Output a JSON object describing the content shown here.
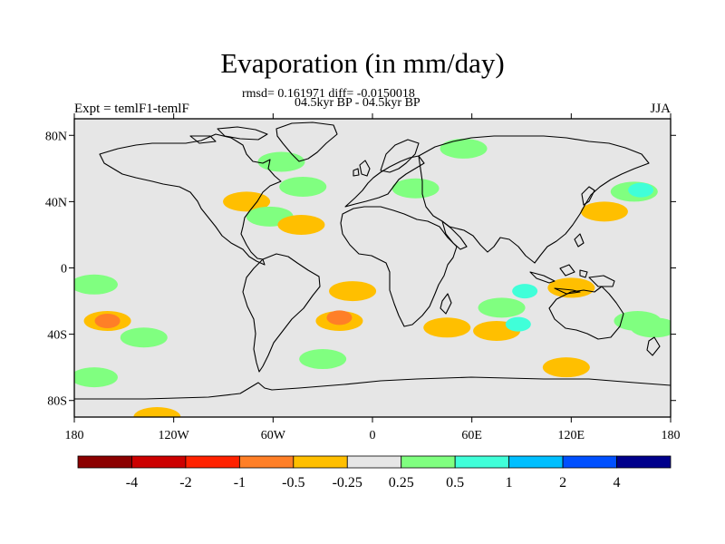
{
  "title": "Evaporation (in mm/day)",
  "subtitle_stats": "rmsd= 0.161971 diff= -0.0150018",
  "subtitle_period": "04.5kyr BP - 04.5kyr BP",
  "left_label": "Expt = temlF1-temlF",
  "right_label": "JJA",
  "map": {
    "projection": "cylindrical-equidistant",
    "lon_range": [
      -180,
      180
    ],
    "lat_range": [
      -90,
      90
    ],
    "background_color": "#e6e6e6",
    "lat_ticks": [
      {
        "value": 80,
        "label": "80N"
      },
      {
        "value": 40,
        "label": "40N"
      },
      {
        "value": 0,
        "label": "0"
      },
      {
        "value": -40,
        "label": "40S"
      },
      {
        "value": -80,
        "label": "80S"
      }
    ],
    "lon_ticks": [
      {
        "value": -180,
        "label": "180"
      },
      {
        "value": -120,
        "label": "120W"
      },
      {
        "value": -60,
        "label": "60W"
      },
      {
        "value": 0,
        "label": "0"
      },
      {
        "value": 60,
        "label": "60E"
      },
      {
        "value": 120,
        "label": "120E"
      },
      {
        "value": 180,
        "label": "180"
      }
    ]
  },
  "colorbar": {
    "colors": [
      "#8b0000",
      "#cc0000",
      "#ff2200",
      "#ff7f27",
      "#ffbf00",
      "#e6e6e6",
      "#80ff80",
      "#40ffd9",
      "#00bfff",
      "#0050ff",
      "#00008b"
    ],
    "labels": [
      "-4",
      "-2",
      "-1",
      "-0.5",
      "-0.25",
      "0.25",
      "0.5",
      "1",
      "2",
      "4"
    ]
  },
  "chart_data": {
    "type": "heatmap",
    "title": "Evaporation (in mm/day)",
    "subtitle": "rmsd= 0.161971 diff= -0.0150018",
    "variable_units": "mm/day",
    "season": "JJA",
    "x_range": [
      -180,
      180
    ],
    "y_range": [
      -90,
      90
    ],
    "contour_levels": [
      -4,
      -2,
      -1,
      -0.5,
      -0.25,
      0.25,
      0.5,
      1,
      2,
      4
    ],
    "anomalies": [
      {
        "lon": -160,
        "lat": -32,
        "level": -1,
        "color": "#ff7f27"
      },
      {
        "lon": -160,
        "lat": -32,
        "level": -0.5,
        "color": "#ffbf00"
      },
      {
        "lon": -168,
        "lat": -10,
        "level": 0.5,
        "color": "#80ff80"
      },
      {
        "lon": -138,
        "lat": -42,
        "level": 0.5,
        "color": "#80ff80"
      },
      {
        "lon": -168,
        "lat": -66,
        "level": 0.5,
        "color": "#80ff80"
      },
      {
        "lon": -130,
        "lat": -90,
        "level": -0.5,
        "color": "#ffbf00"
      },
      {
        "lon": -76,
        "lat": 40,
        "level": -0.5,
        "color": "#ffbf00"
      },
      {
        "lon": -62,
        "lat": 31,
        "level": 0.5,
        "color": "#80ff80"
      },
      {
        "lon": -55,
        "lat": 64,
        "level": 0.5,
        "color": "#80ff80"
      },
      {
        "lon": -42,
        "lat": 49,
        "level": 0.5,
        "color": "#80ff80"
      },
      {
        "lon": -43,
        "lat": 26,
        "level": -0.5,
        "color": "#ffbf00"
      },
      {
        "lon": -30,
        "lat": -55,
        "level": 0.5,
        "color": "#80ff80"
      },
      {
        "lon": -20,
        "lat": -30,
        "level": -1,
        "color": "#ff7f27"
      },
      {
        "lon": -20,
        "lat": -32,
        "level": -0.5,
        "color": "#ffbf00"
      },
      {
        "lon": -12,
        "lat": -14,
        "level": -0.5,
        "color": "#ffbf00"
      },
      {
        "lon": 26,
        "lat": 48,
        "level": 0.5,
        "color": "#80ff80"
      },
      {
        "lon": 55,
        "lat": 72,
        "level": 0.5,
        "color": "#80ff80"
      },
      {
        "lon": 78,
        "lat": -24,
        "level": 0.5,
        "color": "#80ff80"
      },
      {
        "lon": 92,
        "lat": -14,
        "level": 1,
        "color": "#40ffd9"
      },
      {
        "lon": 88,
        "lat": -34,
        "level": 1,
        "color": "#40ffd9"
      },
      {
        "lon": 75,
        "lat": -38,
        "level": -0.5,
        "color": "#ffbf00"
      },
      {
        "lon": 117,
        "lat": -60,
        "level": -0.5,
        "color": "#ffbf00"
      },
      {
        "lon": 45,
        "lat": -36,
        "level": -0.5,
        "color": "#ffbf00"
      },
      {
        "lon": 140,
        "lat": 34,
        "level": -0.5,
        "color": "#ffbf00"
      },
      {
        "lon": 158,
        "lat": 46,
        "level": 0.5,
        "color": "#80ff80"
      },
      {
        "lon": 162,
        "lat": 47,
        "level": 1,
        "color": "#40ffd9"
      },
      {
        "lon": 120,
        "lat": -12,
        "level": -0.5,
        "color": "#ffbf00"
      },
      {
        "lon": 160,
        "lat": -32,
        "level": 0.5,
        "color": "#80ff80"
      },
      {
        "lon": 170,
        "lat": -36,
        "level": 0.5,
        "color": "#80ff80"
      }
    ]
  }
}
